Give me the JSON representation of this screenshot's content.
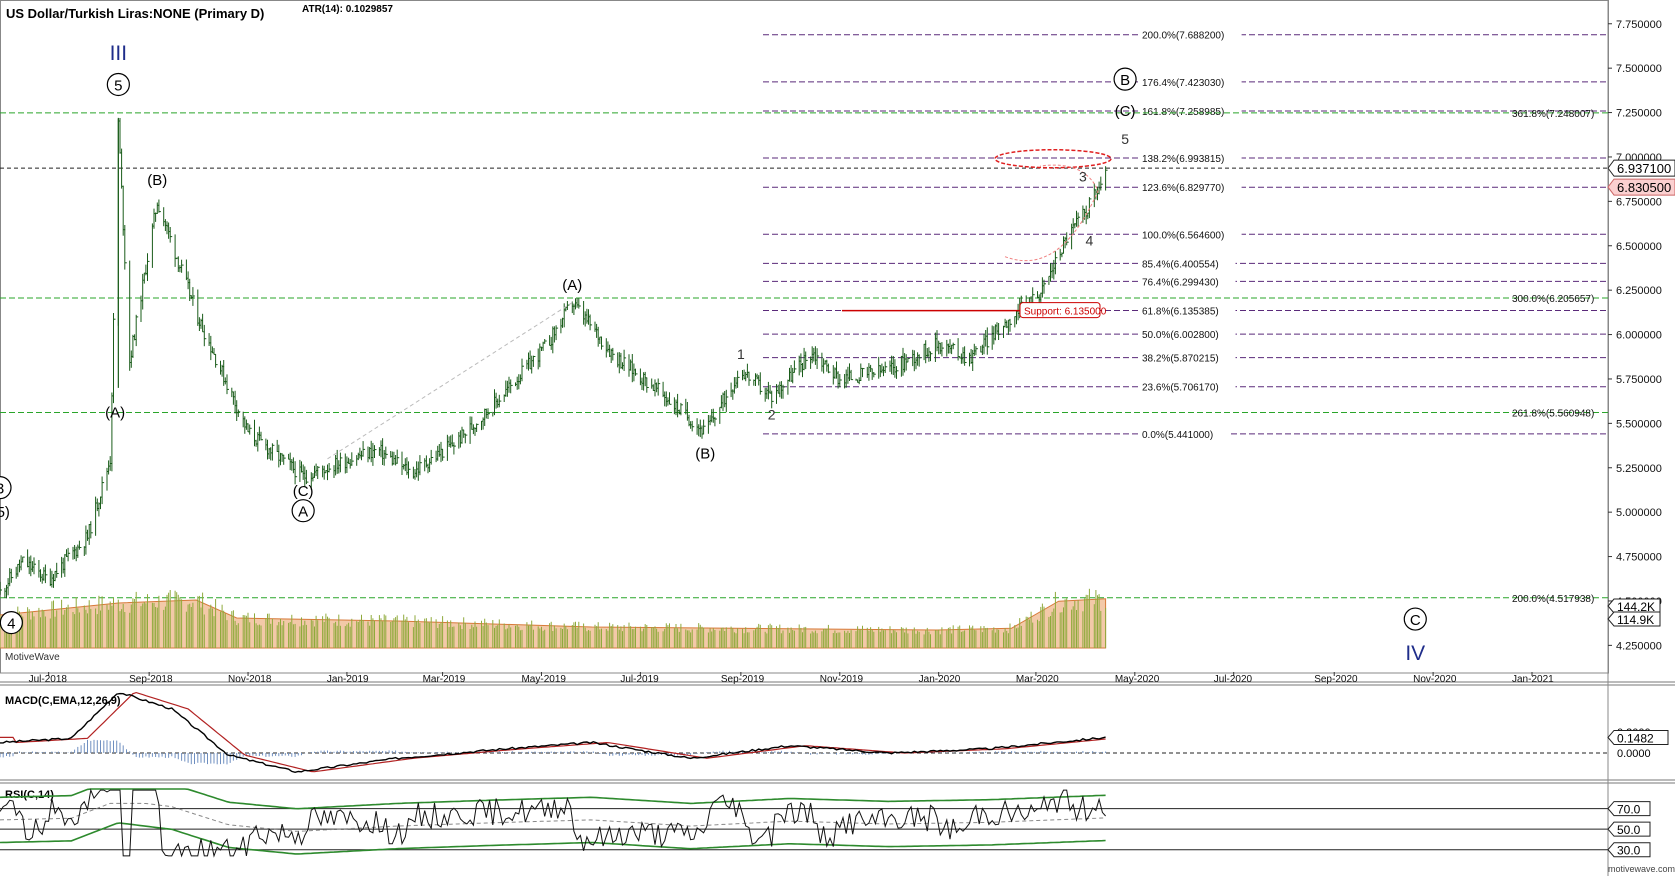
{
  "header": {
    "symbol": "US Dollar/Turkish Liras:NONE (Primary D)",
    "atr": "ATR(14): 0.1029857"
  },
  "colors": {
    "bull": "#1a5c1a",
    "fib": "#5a2a7a",
    "support_line": "#cc0000",
    "green_level": "#2aa52a",
    "volume_area": "#f3c9a8",
    "volume_bar": "#8faa3c",
    "macd": "#000000",
    "macd_signal": "#b22222",
    "macd_hist": "#6f8fc0",
    "rsi_band": "#2d8a2d",
    "wave_blue": "#1f2d8a"
  },
  "chart_data": {
    "type": "ohlc",
    "title": "US Dollar/Turkish Liras:NONE (Primary D)",
    "x_axis": {
      "labels": [
        "Jul-2018",
        "Sep-2018",
        "Nov-2018",
        "Jan-2019",
        "Mar-2019",
        "May-2019",
        "Jul-2019",
        "Sep-2019",
        "Nov-2019",
        "Jan-2020",
        "Mar-2020",
        "May-2020",
        "Jul-2020",
        "Sep-2020",
        "Nov-2020",
        "Jan-2021"
      ]
    },
    "y_axis": {
      "range": [
        4.1,
        7.85
      ],
      "ticks": [
        "7.750000",
        "7.500000",
        "7.250000",
        "7.000000",
        "6.750000",
        "6.500000",
        "6.250000",
        "6.000000",
        "5.750000",
        "5.500000",
        "5.250000",
        "5.000000",
        "4.750000",
        "4.500000",
        "4.250000"
      ]
    },
    "price_path": [
      {
        "date": "2018-06-01",
        "close": 4.55
      },
      {
        "date": "2018-06-15",
        "close": 4.72
      },
      {
        "date": "2018-07-01",
        "close": 4.62
      },
      {
        "date": "2018-07-25",
        "close": 4.86
      },
      {
        "date": "2018-08-08",
        "close": 5.3
      },
      {
        "date": "2018-08-13",
        "close": 7.2
      },
      {
        "date": "2018-08-20",
        "close": 5.85
      },
      {
        "date": "2018-09-06",
        "close": 6.75
      },
      {
        "date": "2018-10-01",
        "close": 6.1
      },
      {
        "date": "2018-11-01",
        "close": 5.45
      },
      {
        "date": "2018-12-05",
        "close": 5.2
      },
      {
        "date": "2019-01-03",
        "close": 5.3
      },
      {
        "date": "2019-01-20",
        "close": 5.35
      },
      {
        "date": "2019-02-10",
        "close": 5.22
      },
      {
        "date": "2019-03-10",
        "close": 5.4
      },
      {
        "date": "2019-04-01",
        "close": 5.6
      },
      {
        "date": "2019-05-05",
        "close": 5.95
      },
      {
        "date": "2019-05-20",
        "close": 6.18
      },
      {
        "date": "2019-06-15",
        "close": 5.88
      },
      {
        "date": "2019-07-10",
        "close": 5.7
      },
      {
        "date": "2019-08-10",
        "close": 5.45
      },
      {
        "date": "2019-09-01",
        "close": 5.8
      },
      {
        "date": "2019-09-20",
        "close": 5.65
      },
      {
        "date": "2019-10-15",
        "close": 5.9
      },
      {
        "date": "2019-11-01",
        "close": 5.75
      },
      {
        "date": "2019-12-01",
        "close": 5.8
      },
      {
        "date": "2020-01-01",
        "close": 5.95
      },
      {
        "date": "2020-01-20",
        "close": 5.87
      },
      {
        "date": "2020-02-15",
        "close": 6.1
      },
      {
        "date": "2020-03-05",
        "close": 6.25
      },
      {
        "date": "2020-03-20",
        "close": 6.55
      },
      {
        "date": "2020-04-01",
        "close": 6.7
      },
      {
        "date": "2020-04-13",
        "close": 6.9
      }
    ],
    "last_price": "6.937100",
    "current_price": "6.830500",
    "fib_levels": [
      {
        "label": "200.0%(7.688200)",
        "value": 7.6882
      },
      {
        "label": "176.4%(7.423030)",
        "value": 7.42303
      },
      {
        "label": "161.8%(7.258985)",
        "value": 7.258985
      },
      {
        "label": "138.2%(6.993815)",
        "value": 6.993815
      },
      {
        "label": "123.6%(6.829770)",
        "value": 6.82977
      },
      {
        "label": "100.0%(6.564600)",
        "value": 6.5646
      },
      {
        "label": "85.4%(6.400554)",
        "value": 6.400554
      },
      {
        "label": "76.4%(6.299430)",
        "value": 6.29943
      },
      {
        "label": "61.8%(6.135385)",
        "value": 6.135385
      },
      {
        "label": "50.0%(6.002800)",
        "value": 6.0028
      },
      {
        "label": "38.2%(5.870215)",
        "value": 5.870215
      },
      {
        "label": "23.6%(5.706170)",
        "value": 5.70617
      },
      {
        "label": "0.0%(5.441000)",
        "value": 5.441
      }
    ],
    "green_levels": [
      {
        "label": "361.8%(7.248007)",
        "value": 7.248007
      },
      {
        "label": "300.0%(6.205657)",
        "value": 6.205657
      },
      {
        "label": "261.8%(5.560948)",
        "value": 5.560948
      },
      {
        "label": "200.0%(4.517938)",
        "value": 4.517938
      }
    ],
    "support": {
      "label": "Support: 6.135000",
      "value": 6.135
    },
    "wave_labels": [
      {
        "text": "III",
        "date": "2018-08-13",
        "price": 7.58,
        "style": "roman"
      },
      {
        "text": "5",
        "date": "2018-08-13",
        "price": 7.38,
        "style": "circled"
      },
      {
        "text": "(B)",
        "date": "2018-09-06",
        "price": 6.87,
        "style": "plain"
      },
      {
        "text": "(A)",
        "date": "2018-08-11",
        "price": 5.56,
        "style": "plain"
      },
      {
        "text": "(C)",
        "date": "2018-12-05",
        "price": 5.12,
        "style": "plain"
      },
      {
        "text": "A",
        "date": "2018-12-05",
        "price": 4.98,
        "style": "circled"
      },
      {
        "text": "(A)",
        "date": "2019-05-20",
        "price": 6.28,
        "style": "plain"
      },
      {
        "text": "(B)",
        "date": "2019-08-10",
        "price": 5.33,
        "style": "plain"
      },
      {
        "text": "1",
        "date": "2019-09-01",
        "price": 5.89,
        "style": "small"
      },
      {
        "text": "2",
        "date": "2019-09-20",
        "price": 5.55,
        "style": "small"
      },
      {
        "text": "3",
        "date": "2020-03-30",
        "price": 6.89,
        "style": "small"
      },
      {
        "text": "4",
        "date": "2020-04-03",
        "price": 6.53,
        "style": "small"
      },
      {
        "text": "5",
        "date": "2020-04-25",
        "price": 7.1,
        "style": "small"
      },
      {
        "text": "(C)",
        "date": "2020-04-25",
        "price": 7.26,
        "style": "plain"
      },
      {
        "text": "B",
        "date": "2020-04-25",
        "price": 7.41,
        "style": "circled"
      },
      {
        "text": "C",
        "date": "2020-10-21",
        "price": 4.37,
        "style": "circled"
      },
      {
        "text": "IV",
        "date": "2020-10-21",
        "price": 4.2,
        "style": "roman"
      },
      {
        "text": "3",
        "date": "2018-06-01",
        "price": 5.11,
        "style": "circled"
      },
      {
        "text": "5)",
        "date": "2018-06-03",
        "price": 5.0,
        "style": "plain"
      },
      {
        "text": "4",
        "date": "2018-06-08",
        "price": 4.35,
        "style": "circled"
      }
    ],
    "volume": {
      "label1": "144.2K",
      "label2": "114.9K",
      "path": [
        {
          "date": "2018-06-01",
          "v": 0.55
        },
        {
          "date": "2018-08-13",
          "v": 0.75
        },
        {
          "date": "2018-09-30",
          "v": 0.8
        },
        {
          "date": "2018-10-25",
          "v": 0.5
        },
        {
          "date": "2019-02-01",
          "v": 0.45
        },
        {
          "date": "2019-06-01",
          "v": 0.35
        },
        {
          "date": "2019-12-31",
          "v": 0.3
        },
        {
          "date": "2020-02-15",
          "v": 0.33
        },
        {
          "date": "2020-03-15",
          "v": 0.78
        },
        {
          "date": "2020-04-13",
          "v": 0.82
        }
      ]
    },
    "macd": {
      "title": "MACD(C,EMA,12,26,9)",
      "y_labels": [
        "0.2000",
        "0.1482",
        "0.0000"
      ],
      "path": [
        {
          "date": "2018-06-01",
          "m": 0.1
        },
        {
          "date": "2018-07-15",
          "m": 0.14
        },
        {
          "date": "2018-08-13",
          "m": 0.58
        },
        {
          "date": "2018-09-15",
          "m": 0.42
        },
        {
          "date": "2018-10-20",
          "m": -0.02
        },
        {
          "date": "2018-12-01",
          "m": -0.18
        },
        {
          "date": "2019-02-01",
          "m": -0.05
        },
        {
          "date": "2019-04-01",
          "m": 0.03
        },
        {
          "date": "2019-06-01",
          "m": 0.1
        },
        {
          "date": "2019-08-01",
          "m": -0.05
        },
        {
          "date": "2019-10-01",
          "m": 0.07
        },
        {
          "date": "2019-12-01",
          "m": 0.0
        },
        {
          "date": "2020-02-01",
          "m": 0.04
        },
        {
          "date": "2020-04-13",
          "m": 0.1482
        }
      ]
    },
    "rsi": {
      "title": "RSI(C,14)",
      "y_labels": [
        "70.0",
        "50.0",
        "30.0"
      ]
    },
    "watermarks": {
      "logo": "MotiveWave",
      "site": "motivewave.com"
    }
  }
}
